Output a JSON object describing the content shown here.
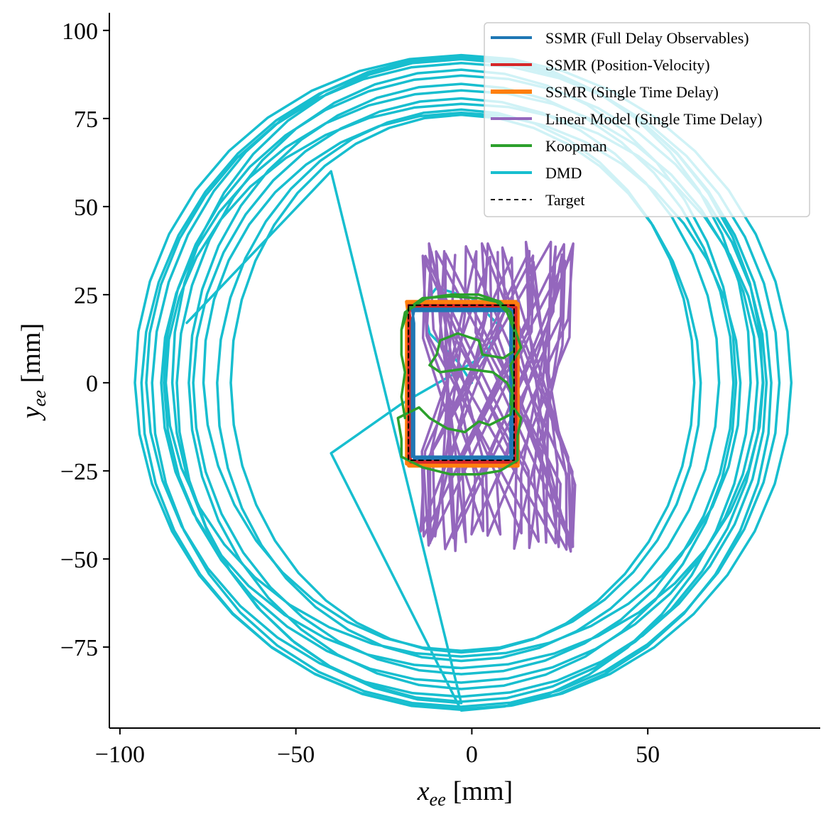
{
  "chart_data": {
    "type": "line",
    "title": "",
    "xlabel_main": "x",
    "xlabel_sub": "ee",
    "xlabel_unit": "[mm]",
    "ylabel_main": "y",
    "ylabel_sub": "ee",
    "ylabel_unit": "[mm]",
    "xlim": [
      -103,
      99
    ],
    "ylim": [
      -98,
      105
    ],
    "xticks": [
      -100,
      -50,
      0,
      50
    ],
    "xtick_labels": [
      "−100",
      "−50",
      "0",
      "50"
    ],
    "yticks": [
      -75,
      -50,
      -25,
      0,
      25,
      50,
      75,
      100
    ],
    "ytick_labels": [
      "−75",
      "−50",
      "−25",
      "0",
      "25",
      "50",
      "75",
      "100"
    ],
    "grid": false,
    "legend_position": "top-right",
    "series": [
      {
        "name": "SSMR (Full Delay Observables)",
        "color": "#1f77b4",
        "style": "solid",
        "kind": "rectangle-loop",
        "center": [
          -3,
          0
        ],
        "half_width": 14,
        "half_height": 21,
        "laps": 2
      },
      {
        "name": "SSMR (Position-Velocity)",
        "color": "#d62728",
        "style": "solid",
        "kind": "rectangle-loop",
        "center": [
          -3,
          0
        ],
        "half_width": 15,
        "half_height": 22,
        "laps": 2
      },
      {
        "name": "SSMR (Single Time Delay)",
        "color": "#ff7f0e",
        "style": "solid",
        "kind": "rectangle-loop",
        "center": [
          -3,
          0
        ],
        "half_width": 15.5,
        "half_height": 23,
        "laps": 2
      },
      {
        "name": "Linear Model (Single Time Delay)",
        "color": "#9467bd",
        "style": "solid",
        "kind": "zigzag",
        "center": [
          -3,
          -3
        ],
        "x_range": [
          -36,
          22
        ],
        "y_range": [
          -48,
          40
        ],
        "tilt": 0.35,
        "loops": 26
      },
      {
        "name": "Koopman",
        "color": "#2ca02c",
        "style": "solid",
        "kind": "wobbly-loop",
        "points": [
          [
            -20,
            15
          ],
          [
            -18,
            21
          ],
          [
            -14,
            24
          ],
          [
            -6,
            24.5
          ],
          [
            2,
            24
          ],
          [
            7,
            23
          ],
          [
            10,
            20
          ],
          [
            12,
            15
          ],
          [
            12,
            9
          ],
          [
            9,
            7
          ],
          [
            3,
            8
          ],
          [
            2,
            12
          ],
          [
            -4,
            14
          ],
          [
            -9,
            12
          ],
          [
            -10,
            8
          ],
          [
            -12,
            5
          ],
          [
            -9,
            3
          ],
          [
            -2,
            4
          ],
          [
            6,
            3
          ],
          [
            10,
            0
          ],
          [
            12,
            -4
          ],
          [
            11,
            -9
          ],
          [
            5,
            -12
          ],
          [
            2,
            -11
          ],
          [
            -2,
            -14
          ],
          [
            -7,
            -13
          ],
          [
            -12,
            -10
          ],
          [
            -15,
            -7
          ],
          [
            -21,
            -10
          ],
          [
            -20,
            -16
          ],
          [
            -20,
            -21
          ],
          [
            -14,
            -24
          ],
          [
            -6,
            -26
          ],
          [
            2,
            -26
          ],
          [
            8,
            -25
          ],
          [
            13,
            -22
          ],
          [
            13,
            -15
          ],
          [
            14,
            -10
          ],
          [
            11,
            -6
          ],
          [
            12,
            0
          ],
          [
            11,
            5
          ],
          [
            14,
            10
          ],
          [
            12,
            16
          ],
          [
            11,
            20
          ],
          [
            8,
            23
          ],
          [
            2,
            25
          ],
          [
            -6,
            25
          ],
          [
            -13,
            24
          ],
          [
            -19,
            20
          ],
          [
            -20,
            15
          ],
          [
            -20,
            8
          ],
          [
            -19,
            3
          ],
          [
            -20,
            -4
          ],
          [
            -19,
            -10
          ]
        ]
      },
      {
        "name": "DMD",
        "color": "#17becf",
        "style": "solid",
        "kind": "spiral",
        "start": [
          0,
          0
        ],
        "end": [
          -81,
          17
        ],
        "center": [
          -3,
          0
        ],
        "rx_range": [
          72,
          94
        ],
        "ry_range": [
          76,
          93
        ],
        "turns": 14
      },
      {
        "name": "Target",
        "color": "#000000",
        "style": "dashed",
        "kind": "rectangle-loop",
        "center": [
          -3,
          0
        ],
        "half_width": 15,
        "half_height": 22,
        "laps": 1
      }
    ]
  }
}
